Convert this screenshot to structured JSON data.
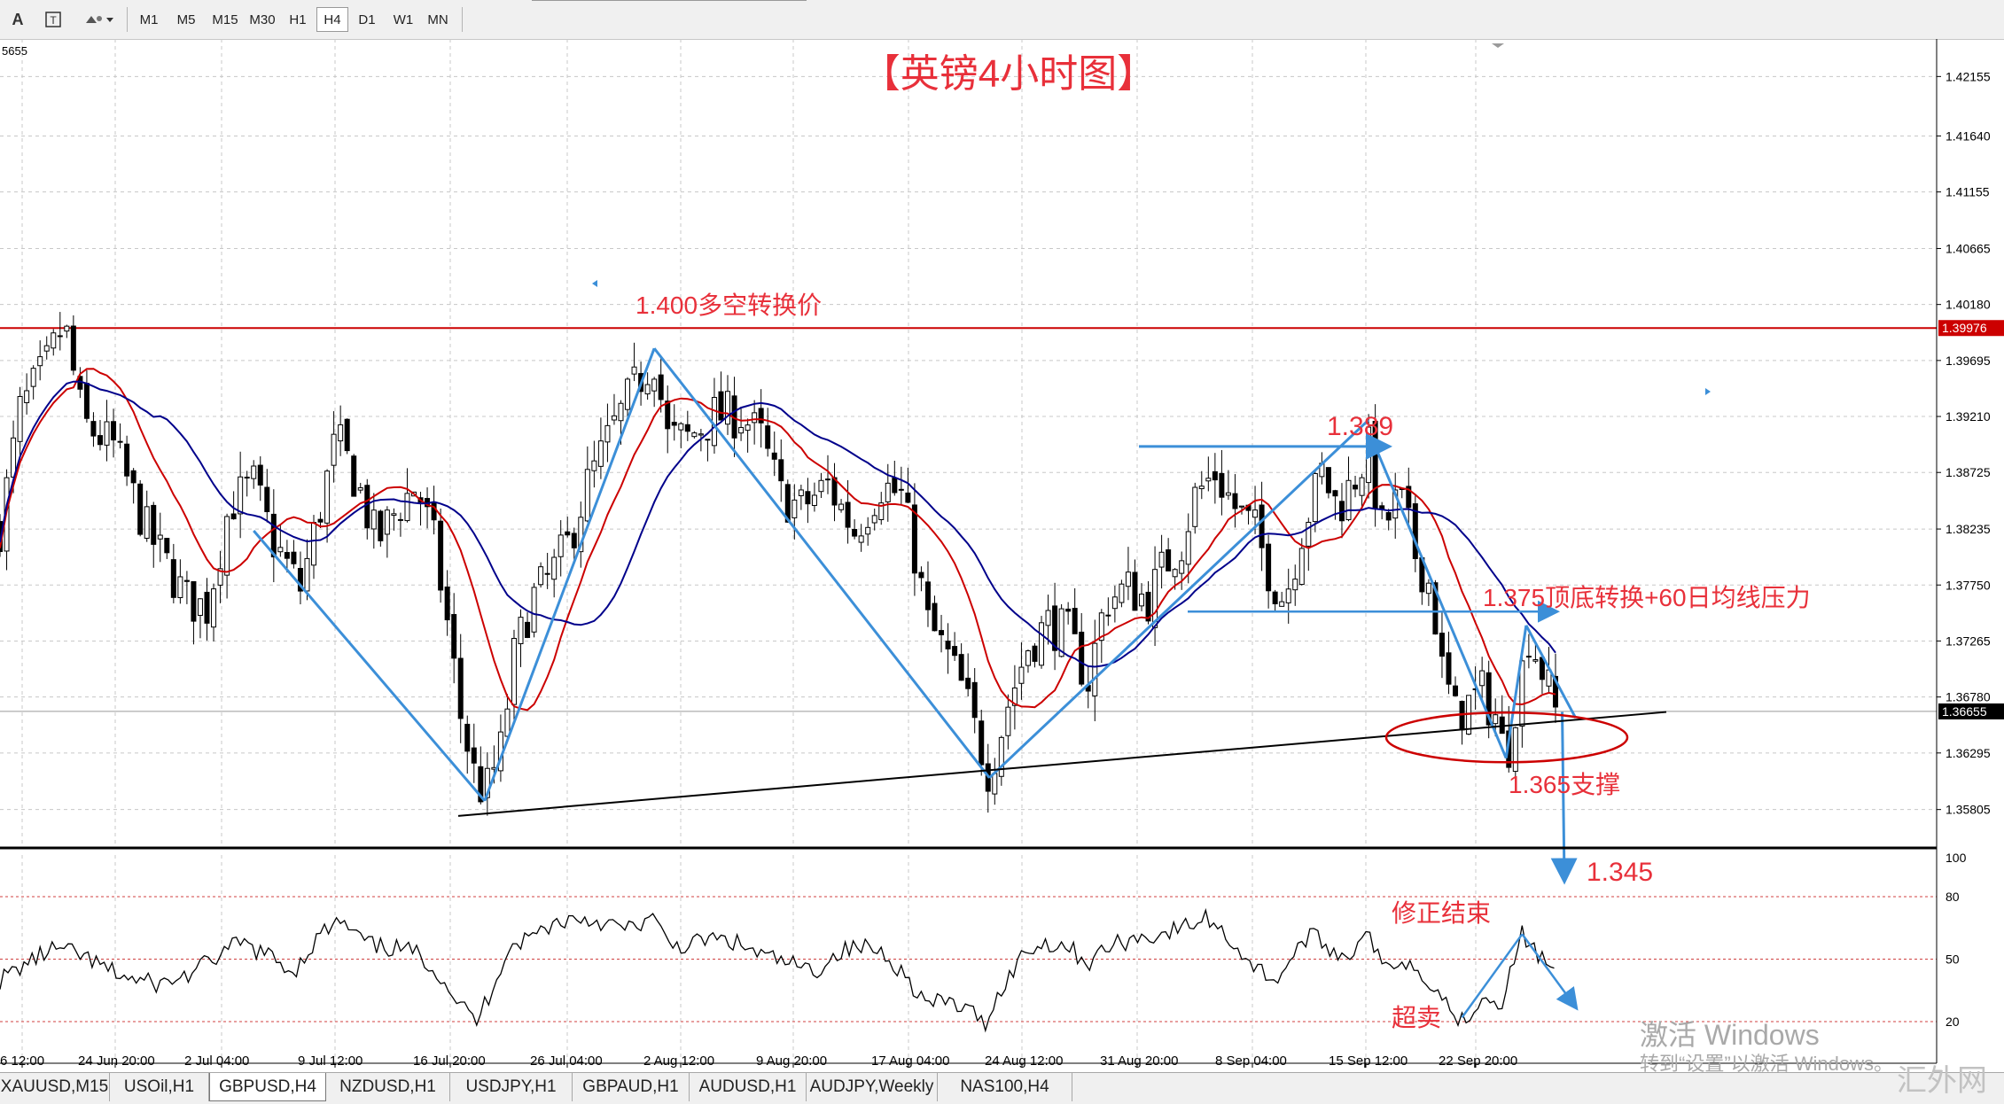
{
  "toolbar": {
    "tool_icons": [
      "text-icon",
      "text-label-icon",
      "shapes-icon"
    ],
    "timeframes": [
      "M1",
      "M5",
      "M15",
      "M30",
      "H1",
      "H4",
      "D1",
      "W1",
      "MN"
    ],
    "active_timeframe": "H4"
  },
  "tabs": [
    "XAUUSD,M15",
    "USOil,H1",
    "GBPUSD,H4",
    "NZDUSD,H1",
    "USDJPY,H1",
    "GBPAUD,H1",
    "AUDUSD,H1",
    "AUDJPY,Weekly",
    "NAS100,H4"
  ],
  "active_tab": "GBPUSD,H4",
  "watermark": {
    "line1": "激活 Windows",
    "line2": "转到“设置”以激活 Windows。",
    "logo": "汇外网"
  },
  "chart_data": {
    "type": "candlestick",
    "title": "【英镑4小时图】",
    "corner_label": "5655",
    "y_ticks": [
      "1.42155",
      "1.41640",
      "1.41155",
      "1.40665",
      "1.40180",
      "1.39695",
      "1.39210",
      "1.38725",
      "1.38235",
      "1.37750",
      "1.37265",
      "1.36780",
      "1.36295",
      "1.35805"
    ],
    "ylim": [
      1.3548,
      1.4248
    ],
    "x_ticks": [
      "6 12:00",
      "24 Jun 20:00",
      "2 Jul 04:00",
      "9 Jul 12:00",
      "16 Jul 20:00",
      "26 Jul 04:00",
      "2 Aug 12:00",
      "9 Aug 20:00",
      "17 Aug 04:00",
      "24 Aug 12:00",
      "31 Aug 20:00",
      "8 Sep 04:00",
      "15 Sep 12:00",
      "22 Sep 20:00"
    ],
    "current_price": "1.36655",
    "level_label": "1.39976",
    "level_price": 1.39976,
    "price_path": [
      [
        0,
        1.3825
      ],
      [
        15,
        1.3925
      ],
      [
        35,
        1.3965
      ],
      [
        48,
        1.4002
      ],
      [
        62,
        1.3915
      ],
      [
        85,
        1.3895
      ],
      [
        110,
        1.3822
      ],
      [
        140,
        1.3762
      ],
      [
        155,
        1.3755
      ],
      [
        172,
        1.3845
      ],
      [
        190,
        1.3862
      ],
      [
        205,
        1.3812
      ],
      [
        225,
        1.3772
      ],
      [
        240,
        1.3842
      ],
      [
        252,
        1.3902
      ],
      [
        268,
        1.3862
      ],
      [
        282,
        1.3812
      ],
      [
        298,
        1.3842
      ],
      [
        312,
        1.3862
      ],
      [
        325,
        1.3812
      ],
      [
        335,
        1.3742
      ],
      [
        345,
        1.3662
      ],
      [
        355,
        1.3612
      ],
      [
        363,
        1.3592
      ],
      [
        375,
        1.3632
      ],
      [
        385,
        1.3712
      ],
      [
        398,
        1.3762
      ],
      [
        412,
        1.3782
      ],
      [
        426,
        1.3812
      ],
      [
        440,
        1.3862
      ],
      [
        460,
        1.3912
      ],
      [
        478,
        1.3952
      ],
      [
        490,
        1.3972
      ],
      [
        500,
        1.3902
      ],
      [
        515,
        1.3902
      ],
      [
        535,
        1.3922
      ],
      [
        555,
        1.3922
      ],
      [
        570,
        1.3902
      ],
      [
        585,
        1.3852
      ],
      [
        600,
        1.3842
      ],
      [
        620,
        1.3862
      ],
      [
        640,
        1.3822
      ],
      [
        660,
        1.3862
      ],
      [
        675,
        1.3852
      ],
      [
        685,
        1.3802
      ],
      [
        695,
        1.3742
      ],
      [
        710,
        1.3712
      ],
      [
        722,
        1.3682
      ],
      [
        732,
        1.3642
      ],
      [
        741,
        1.3612
      ],
      [
        755,
        1.3672
      ],
      [
        770,
        1.3722
      ],
      [
        785,
        1.3742
      ],
      [
        800,
        1.3732
      ],
      [
        815,
        1.3692
      ],
      [
        828,
        1.3762
      ],
      [
        845,
        1.3772
      ],
      [
        860,
        1.3762
      ],
      [
        872,
        1.3792
      ],
      [
        885,
        1.3812
      ],
      [
        895,
        1.3852
      ],
      [
        910,
        1.3872
      ],
      [
        925,
        1.3842
      ],
      [
        940,
        1.3822
      ],
      [
        952,
        1.3782
      ],
      [
        962,
        1.3762
      ],
      [
        975,
        1.3822
      ],
      [
        990,
        1.3872
      ],
      [
        1002,
        1.3842
      ],
      [
        1012,
        1.3862
      ],
      [
        1025,
        1.3892
      ],
      [
        1035,
        1.3822
      ],
      [
        1048,
        1.3852
      ],
      [
        1060,
        1.3802
      ],
      [
        1072,
        1.3772
      ],
      [
        1080,
        1.3702
      ],
      [
        1090,
        1.3662
      ],
      [
        1100,
        1.3672
      ],
      [
        1110,
        1.3682
      ],
      [
        1120,
        1.3662
      ],
      [
        1128,
        1.3622
      ],
      [
        1135,
        1.3672
      ],
      [
        1145,
        1.3732
      ],
      [
        1155,
        1.3702
      ],
      [
        1165,
        1.3665
      ]
    ],
    "rsi": {
      "levels": [
        20,
        50,
        80
      ],
      "scale": [
        0,
        100
      ],
      "labels": [
        "100",
        "80",
        "50",
        "20"
      ],
      "path": [
        [
          0,
          40
        ],
        [
          20,
          48
        ],
        [
          40,
          55
        ],
        [
          60,
          52
        ],
        [
          80,
          45
        ],
        [
          100,
          40
        ],
        [
          120,
          38
        ],
        [
          140,
          42
        ],
        [
          160,
          50
        ],
        [
          180,
          58
        ],
        [
          200,
          52
        ],
        [
          220,
          44
        ],
        [
          240,
          62
        ],
        [
          255,
          68
        ],
        [
          265,
          62
        ],
        [
          280,
          56
        ],
        [
          300,
          55
        ],
        [
          315,
          52
        ],
        [
          330,
          42
        ],
        [
          345,
          28
        ],
        [
          357,
          20
        ],
        [
          368,
          35
        ],
        [
          380,
          55
        ],
        [
          395,
          60
        ],
        [
          410,
          66
        ],
        [
          430,
          70
        ],
        [
          450,
          68
        ],
        [
          470,
          64
        ],
        [
          488,
          70
        ],
        [
          500,
          58
        ],
        [
          515,
          56
        ],
        [
          530,
          60
        ],
        [
          550,
          58
        ],
        [
          570,
          52
        ],
        [
          590,
          48
        ],
        [
          610,
          44
        ],
        [
          630,
          54
        ],
        [
          650,
          56
        ],
        [
          665,
          52
        ],
        [
          680,
          40
        ],
        [
          695,
          28
        ],
        [
          710,
          30
        ],
        [
          725,
          25
        ],
        [
          738,
          20
        ],
        [
          752,
          38
        ],
        [
          768,
          54
        ],
        [
          785,
          58
        ],
        [
          800,
          56
        ],
        [
          815,
          48
        ],
        [
          830,
          56
        ],
        [
          850,
          60
        ],
        [
          870,
          62
        ],
        [
          890,
          66
        ],
        [
          905,
          70
        ],
        [
          920,
          60
        ],
        [
          940,
          46
        ],
        [
          955,
          40
        ],
        [
          965,
          48
        ],
        [
          980,
          62
        ],
        [
          995,
          56
        ],
        [
          1010,
          50
        ],
        [
          1022,
          66
        ],
        [
          1035,
          46
        ],
        [
          1050,
          50
        ],
        [
          1068,
          42
        ],
        [
          1082,
          30
        ],
        [
          1095,
          20
        ],
        [
          1110,
          32
        ],
        [
          1125,
          30
        ],
        [
          1140,
          62
        ],
        [
          1152,
          52
        ],
        [
          1165,
          44
        ]
      ]
    },
    "annotations": {
      "pivot_label": "1.400多空转换价",
      "high_label": "1.389",
      "resistance_label": "1.375顶底转换+60日均线压力",
      "support_label": "1.365支撑",
      "target_label": "1.345",
      "correction_label": "修正结束",
      "oversold_label": "超卖"
    },
    "colors": {
      "candle": "#000000",
      "ma_fast": "#cc0000",
      "ma_slow": "#00008b",
      "annotation": "#e8303a",
      "arrow": "#3c8fd8",
      "grid": "#c8c8c8"
    }
  }
}
